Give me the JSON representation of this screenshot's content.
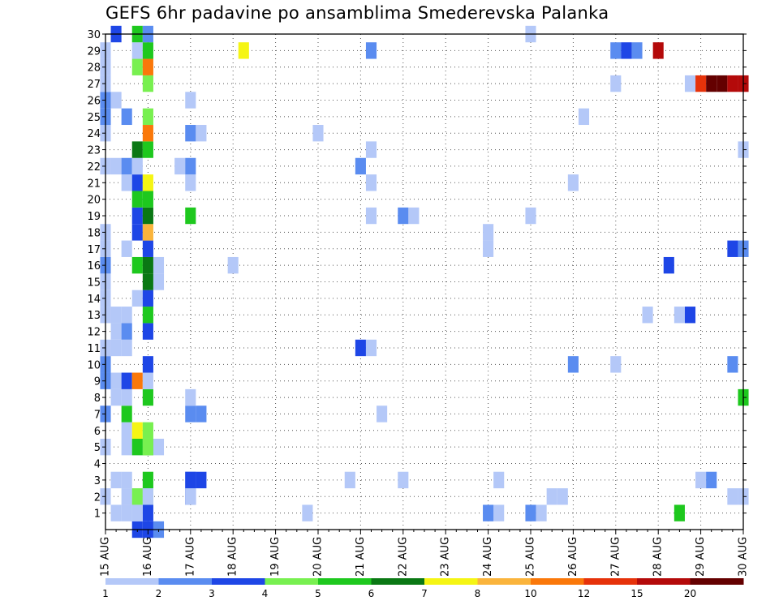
{
  "chart_data": {
    "type": "heatmap",
    "title": "GEFS 6hr padavine po ansamblima Smederevska Palanka",
    "xlabel": "",
    "ylabel": "",
    "x_tick_labels": [
      "15 AUG",
      "16 AUG",
      "17 AUG",
      "18 AUG",
      "19 AUG",
      "20 AUG",
      "21 AUG",
      "22 AUG",
      "23 AUG",
      "24 AUG",
      "25 AUG",
      "26 AUG",
      "27 AUG",
      "28 AUG",
      "29 AUG",
      "30 AUG"
    ],
    "y_tick_labels": [
      "1",
      "2",
      "3",
      "4",
      "5",
      "6",
      "7",
      "8",
      "9",
      "10",
      "11",
      "12",
      "13",
      "14",
      "15",
      "16",
      "17",
      "18",
      "19",
      "20",
      "21",
      "22",
      "23",
      "24",
      "25",
      "26",
      "27",
      "28",
      "29",
      "30"
    ],
    "xlim": [
      0,
      60
    ],
    "ylim": [
      0,
      30
    ],
    "x_unit": "6-hour steps from 15 AUG",
    "y_unit": "ensemble member",
    "grid": true,
    "legend": {
      "placement": "bottom",
      "labels": [
        "1",
        "2",
        "3",
        "4",
        "5",
        "6",
        "7",
        "8",
        "10",
        "12",
        "15",
        "20"
      ],
      "colors": [
        "#b4c8f8",
        "#5a8cf0",
        "#1e46e6",
        "#78f050",
        "#1ec81e",
        "#0a7814",
        "#f5f514",
        "#fab43c",
        "#fa780a",
        "#e6320a",
        "#b40a0a",
        "#640000"
      ]
    },
    "values": [
      [
        3,
        0,
        3
      ],
      [
        4,
        0,
        3
      ],
      [
        5,
        0,
        2
      ],
      [
        3,
        1,
        1
      ],
      [
        4,
        1,
        3
      ],
      [
        4,
        2,
        4
      ],
      [
        8,
        2,
        3
      ],
      [
        8,
        3,
        2
      ],
      [
        3,
        2,
        1
      ],
      [
        1,
        3,
        1
      ],
      [
        2,
        3,
        1
      ],
      [
        4,
        3,
        5
      ],
      [
        8,
        3,
        3
      ],
      [
        9,
        3,
        3
      ],
      [
        23,
        3,
        1
      ],
      [
        28,
        3,
        1
      ],
      [
        37,
        3,
        1
      ],
      [
        56,
        3,
        1
      ],
      [
        57,
        3,
        2
      ],
      [
        0,
        2,
        1
      ],
      [
        2,
        2,
        1
      ],
      [
        3,
        2,
        4
      ],
      [
        4,
        2,
        1
      ],
      [
        8,
        2,
        1
      ],
      [
        42,
        2,
        1
      ],
      [
        43,
        2,
        1
      ],
      [
        59,
        2,
        1
      ],
      [
        60,
        2,
        1
      ],
      [
        1,
        1,
        1
      ],
      [
        2,
        1,
        1
      ],
      [
        3,
        1,
        1
      ],
      [
        19,
        1,
        1
      ],
      [
        37,
        1,
        1
      ],
      [
        36,
        1,
        2
      ],
      [
        40,
        1,
        2
      ],
      [
        41,
        1,
        1
      ],
      [
        54,
        1,
        5
      ],
      [
        3,
        5,
        1
      ],
      [
        4,
        5,
        5
      ],
      [
        0,
        5,
        1
      ],
      [
        2,
        5,
        1
      ],
      [
        3,
        5,
        5
      ],
      [
        4,
        5,
        4
      ],
      [
        5,
        5,
        1
      ],
      [
        2,
        6,
        1
      ],
      [
        3,
        6,
        7
      ],
      [
        4,
        6,
        4
      ],
      [
        0,
        7,
        2
      ],
      [
        2,
        7,
        5
      ],
      [
        8,
        7,
        2
      ],
      [
        9,
        7,
        2
      ],
      [
        26,
        7,
        1
      ],
      [
        1,
        8,
        1
      ],
      [
        2,
        8,
        1
      ],
      [
        4,
        8,
        5
      ],
      [
        8,
        8,
        1
      ],
      [
        60,
        8,
        5
      ],
      [
        0,
        9,
        2
      ],
      [
        1,
        9,
        1
      ],
      [
        2,
        9,
        3
      ],
      [
        3,
        9,
        10
      ],
      [
        4,
        9,
        1
      ],
      [
        0,
        10,
        2
      ],
      [
        4,
        10,
        3
      ],
      [
        44,
        10,
        2
      ],
      [
        48,
        10,
        1
      ],
      [
        59,
        10,
        2
      ],
      [
        0,
        11,
        1
      ],
      [
        1,
        11,
        1
      ],
      [
        2,
        11,
        1
      ],
      [
        24,
        11,
        3
      ],
      [
        25,
        11,
        1
      ],
      [
        1,
        12,
        1
      ],
      [
        2,
        12,
        2
      ],
      [
        4,
        12,
        3
      ],
      [
        0,
        13,
        1
      ],
      [
        1,
        13,
        1
      ],
      [
        2,
        13,
        1
      ],
      [
        4,
        13,
        5
      ],
      [
        51,
        13,
        1
      ],
      [
        54,
        13,
        1
      ],
      [
        55,
        13,
        3
      ],
      [
        0,
        14,
        1
      ],
      [
        3,
        14,
        1
      ],
      [
        4,
        14,
        3
      ],
      [
        0,
        15,
        1
      ],
      [
        4,
        15,
        6
      ],
      [
        5,
        15,
        1
      ],
      [
        0,
        16,
        2
      ],
      [
        3,
        16,
        5
      ],
      [
        4,
        16,
        6
      ],
      [
        5,
        16,
        1
      ],
      [
        12,
        16,
        1
      ],
      [
        53,
        16,
        3
      ],
      [
        0,
        17,
        1
      ],
      [
        2,
        17,
        1
      ],
      [
        4,
        17,
        3
      ],
      [
        36,
        17,
        1
      ],
      [
        59,
        17,
        3
      ],
      [
        60,
        17,
        2
      ],
      [
        0,
        18,
        1
      ],
      [
        3,
        18,
        3
      ],
      [
        4,
        18,
        8
      ],
      [
        36,
        18,
        1
      ],
      [
        3,
        19,
        3
      ],
      [
        4,
        19,
        6
      ],
      [
        8,
        19,
        5
      ],
      [
        25,
        19,
        1
      ],
      [
        28,
        19,
        2
      ],
      [
        29,
        19,
        1
      ],
      [
        40,
        19,
        1
      ],
      [
        3,
        20,
        5
      ],
      [
        4,
        20,
        5
      ],
      [
        2,
        21,
        1
      ],
      [
        3,
        21,
        3
      ],
      [
        4,
        21,
        7
      ],
      [
        8,
        21,
        1
      ],
      [
        25,
        21,
        1
      ],
      [
        44,
        21,
        1
      ],
      [
        0,
        22,
        1
      ],
      [
        1,
        22,
        1
      ],
      [
        2,
        22,
        2
      ],
      [
        3,
        22,
        1
      ],
      [
        7,
        22,
        1
      ],
      [
        8,
        22,
        2
      ],
      [
        24,
        22,
        2
      ],
      [
        3,
        23,
        6
      ],
      [
        4,
        23,
        5
      ],
      [
        25,
        23,
        1
      ],
      [
        60,
        23,
        1
      ],
      [
        0,
        24,
        1
      ],
      [
        4,
        24,
        11
      ],
      [
        8,
        24,
        2
      ],
      [
        9,
        24,
        1
      ],
      [
        20,
        24,
        1
      ],
      [
        0,
        25,
        2
      ],
      [
        2,
        25,
        2
      ],
      [
        4,
        25,
        4
      ],
      [
        45,
        25,
        1
      ],
      [
        0,
        26,
        2
      ],
      [
        1,
        26,
        1
      ],
      [
        8,
        26,
        1
      ],
      [
        0,
        27,
        1
      ],
      [
        4,
        27,
        4
      ],
      [
        48,
        27,
        1
      ],
      [
        55,
        27,
        1
      ],
      [
        56,
        27,
        14
      ],
      [
        57,
        27,
        20
      ],
      [
        58,
        27,
        20
      ],
      [
        59,
        27,
        15
      ],
      [
        60,
        27,
        15
      ],
      [
        0,
        28,
        1
      ],
      [
        3,
        28,
        4
      ],
      [
        4,
        28,
        11
      ],
      [
        0,
        29,
        1
      ],
      [
        3,
        29,
        1
      ],
      [
        4,
        29,
        5
      ],
      [
        13,
        29,
        7
      ],
      [
        25,
        29,
        2
      ],
      [
        48,
        29,
        2
      ],
      [
        49,
        29,
        3
      ],
      [
        50,
        29,
        2
      ],
      [
        52,
        29,
        15
      ],
      [
        1,
        30,
        3
      ],
      [
        3,
        30,
        5
      ],
      [
        4,
        30,
        2
      ],
      [
        40,
        30,
        1
      ]
    ]
  }
}
